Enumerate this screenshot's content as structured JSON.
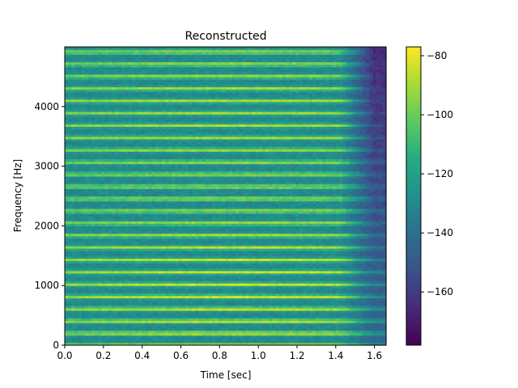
{
  "chart_data": {
    "type": "heatmap",
    "title": "Reconstructed",
    "xlabel": "Time [sec]",
    "ylabel": "Frequency [Hz]",
    "xlim": [
      0,
      1.66
    ],
    "ylim": [
      0,
      5000
    ],
    "xticks": [
      0.0,
      0.2,
      0.4,
      0.6,
      0.8,
      1.0,
      1.2,
      1.4,
      1.6
    ],
    "xtick_labels": [
      "0.0",
      "0.2",
      "0.4",
      "0.6",
      "0.8",
      "1.0",
      "1.2",
      "1.4",
      "1.6"
    ],
    "yticks": [
      0,
      1000,
      2000,
      3000,
      4000
    ],
    "ytick_labels": [
      "0",
      "1000",
      "2000",
      "3000",
      "4000"
    ],
    "colormap": "viridis",
    "colorbar": {
      "range": [
        -178,
        -77
      ],
      "ticks": [
        -80,
        -100,
        -120,
        -140,
        -160
      ],
      "tick_labels": [
        "−80",
        "−100",
        "−120",
        "−140",
        "−160"
      ]
    },
    "harmonic_spacing_hz": 205,
    "peak_level_db": -80,
    "trough_level_db": -130,
    "fade_start_sec": 1.42,
    "silence_level_db": -165,
    "grid": false
  }
}
